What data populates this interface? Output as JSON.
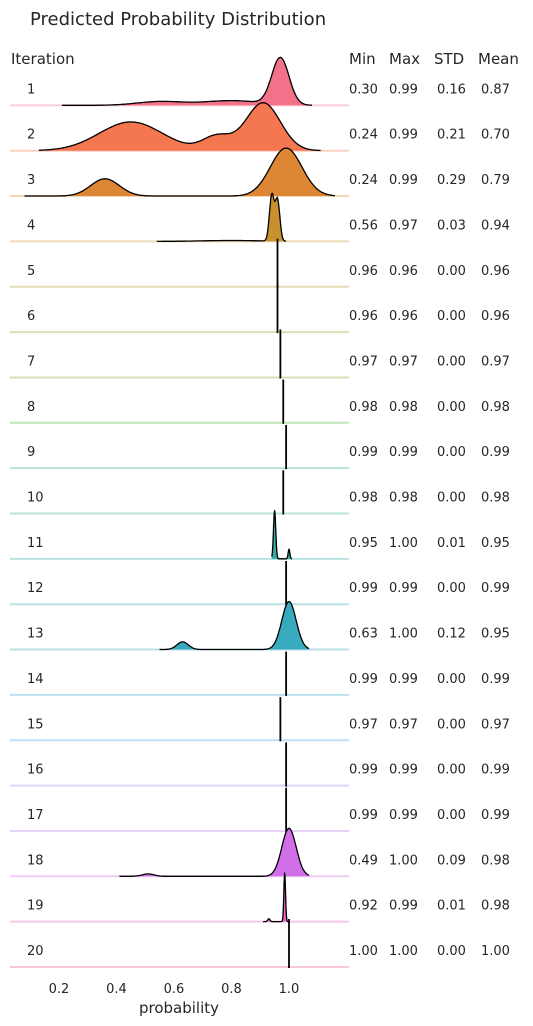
{
  "chart_data": {
    "type": "ridgeline",
    "title": "Predicted Probability Distribution",
    "xlabel": "probability",
    "xticks": [
      "0.2",
      "0.4",
      "0.6",
      "0.8",
      "1.0"
    ],
    "xlim": [
      0.05,
      1.27
    ],
    "column_headers": {
      "iteration": "Iteration",
      "min": "Min",
      "max": "Max",
      "std": "STD",
      "mean": "Mean"
    },
    "rows": [
      {
        "iteration": "1",
        "min": "0.30",
        "max": "0.99",
        "std": "0.16",
        "mean": "0.87",
        "color": "#f4718a",
        "range": [
          0.21,
          1.08
        ],
        "peak": 1.0,
        "peaks": [
          {
            "mu": 0.97,
            "sd": 0.03,
            "w": 1.0
          },
          {
            "mu": 0.55,
            "sd": 0.08,
            "w": 0.08
          },
          {
            "mu": 0.8,
            "sd": 0.1,
            "w": 0.1
          }
        ]
      },
      {
        "iteration": "2",
        "min": "0.24",
        "max": "0.99",
        "std": "0.21",
        "mean": "0.70",
        "color": "#f4774f",
        "range": [
          0.13,
          1.11
        ],
        "peak": 1.0,
        "peaks": [
          {
            "mu": 0.91,
            "sd": 0.06,
            "w": 1.0
          },
          {
            "mu": 0.45,
            "sd": 0.11,
            "w": 0.6
          },
          {
            "mu": 0.75,
            "sd": 0.05,
            "w": 0.3
          }
        ]
      },
      {
        "iteration": "3",
        "min": "0.24",
        "max": "0.99",
        "std": "0.29",
        "mean": "0.79",
        "color": "#dd8734",
        "range": [
          0.08,
          1.16
        ],
        "peak": 1.0,
        "peaks": [
          {
            "mu": 0.99,
            "sd": 0.055,
            "w": 1.0
          },
          {
            "mu": 0.36,
            "sd": 0.05,
            "w": 0.36
          }
        ]
      },
      {
        "iteration": "4",
        "min": "0.56",
        "max": "0.97",
        "std": "0.03",
        "mean": "0.94",
        "color": "#c8912e",
        "range": [
          0.54,
          0.99
        ],
        "peak": 1.0,
        "peaks": [
          {
            "mu": 0.94,
            "sd": 0.008,
            "w": 1.0
          },
          {
            "mu": 0.96,
            "sd": 0.008,
            "w": 0.9
          },
          {
            "mu": 0.8,
            "sd": 0.1,
            "w": 0.02
          }
        ]
      },
      {
        "iteration": "5",
        "min": "0.96",
        "max": "0.96",
        "std": "0.00",
        "mean": "0.96",
        "color": "#b19b2e",
        "range": [
          0.96,
          0.96
        ],
        "peak": 1.0,
        "peaks": []
      },
      {
        "iteration": "6",
        "min": "0.96",
        "max": "0.96",
        "std": "0.00",
        "mean": "0.96",
        "color": "#9aa22e",
        "range": [
          0.96,
          0.96
        ],
        "peak": 1.0,
        "peaks": []
      },
      {
        "iteration": "7",
        "min": "0.97",
        "max": "0.97",
        "std": "0.00",
        "mean": "0.97",
        "color": "#7eaa2f",
        "range": [
          0.97,
          0.97
        ],
        "peak": 1.0,
        "peaks": []
      },
      {
        "iteration": "8",
        "min": "0.98",
        "max": "0.98",
        "std": "0.00",
        "mean": "0.98",
        "color": "#48b130",
        "range": [
          0.98,
          0.98
        ],
        "peak": 0.9,
        "peaks": []
      },
      {
        "iteration": "9",
        "min": "0.99",
        "max": "0.99",
        "std": "0.00",
        "mean": "0.99",
        "color": "#33b07a",
        "range": [
          0.99,
          0.99
        ],
        "peak": 0.9,
        "peaks": []
      },
      {
        "iteration": "10",
        "min": "0.98",
        "max": "0.98",
        "std": "0.00",
        "mean": "0.98",
        "color": "#35ae95",
        "range": [
          0.98,
          0.98
        ],
        "peak": 0.9,
        "peaks": []
      },
      {
        "iteration": "11",
        "min": "0.95",
        "max": "1.00",
        "std": "0.01",
        "mean": "0.95",
        "color": "#36ada4",
        "range": [
          0.94,
          1.01
        ],
        "peak": 1.0,
        "peaks": [
          {
            "mu": 0.95,
            "sd": 0.004,
            "w": 1.0
          },
          {
            "mu": 1.0,
            "sd": 0.003,
            "w": 0.2
          }
        ]
      },
      {
        "iteration": "12",
        "min": "0.99",
        "max": "0.99",
        "std": "0.00",
        "mean": "0.99",
        "color": "#37abb1",
        "range": [
          0.99,
          0.99
        ],
        "peak": 0.9,
        "peaks": []
      },
      {
        "iteration": "13",
        "min": "0.63",
        "max": "1.00",
        "std": "0.12",
        "mean": "0.95",
        "color": "#38aabe",
        "range": [
          0.55,
          1.07
        ],
        "peak": 1.0,
        "peaks": [
          {
            "mu": 1.0,
            "sd": 0.025,
            "w": 1.0
          },
          {
            "mu": 0.63,
            "sd": 0.02,
            "w": 0.16
          }
        ]
      },
      {
        "iteration": "14",
        "min": "0.99",
        "max": "0.99",
        "std": "0.00",
        "mean": "0.99",
        "color": "#3ba7cf",
        "range": [
          0.99,
          0.99
        ],
        "peak": 0.9,
        "peaks": []
      },
      {
        "iteration": "15",
        "min": "0.97",
        "max": "0.97",
        "std": "0.00",
        "mean": "0.97",
        "color": "#4ca1e8",
        "range": [
          0.97,
          0.97
        ],
        "peak": 0.9,
        "peaks": []
      },
      {
        "iteration": "16",
        "min": "0.99",
        "max": "0.99",
        "std": "0.00",
        "mean": "0.99",
        "color": "#8c8ff0",
        "range": [
          0.99,
          0.99
        ],
        "peak": 0.9,
        "peaks": []
      },
      {
        "iteration": "17",
        "min": "0.99",
        "max": "0.99",
        "std": "0.00",
        "mean": "0.99",
        "color": "#b57fee",
        "range": [
          0.99,
          0.99
        ],
        "peak": 0.9,
        "peaks": []
      },
      {
        "iteration": "18",
        "min": "0.49",
        "max": "1.00",
        "std": "0.09",
        "mean": "0.98",
        "color": "#d36ee9",
        "range": [
          0.41,
          1.07
        ],
        "peak": 1.0,
        "peaks": [
          {
            "mu": 1.0,
            "sd": 0.025,
            "w": 1.0
          },
          {
            "mu": 0.51,
            "sd": 0.02,
            "w": 0.05
          }
        ]
      },
      {
        "iteration": "19",
        "min": "0.92",
        "max": "0.99",
        "std": "0.01",
        "mean": "0.98",
        "color": "#ea60c0",
        "range": [
          0.91,
          1.0
        ],
        "peak": 1.0,
        "peaks": [
          {
            "mu": 0.985,
            "sd": 0.003,
            "w": 1.0
          },
          {
            "mu": 0.93,
            "sd": 0.004,
            "w": 0.06
          }
        ]
      },
      {
        "iteration": "20",
        "min": "1.00",
        "max": "1.00",
        "std": "0.00",
        "mean": "1.00",
        "color": "#f35ea0",
        "range": [
          1.0,
          1.0
        ],
        "peak": 1.0,
        "peaks": []
      }
    ]
  }
}
